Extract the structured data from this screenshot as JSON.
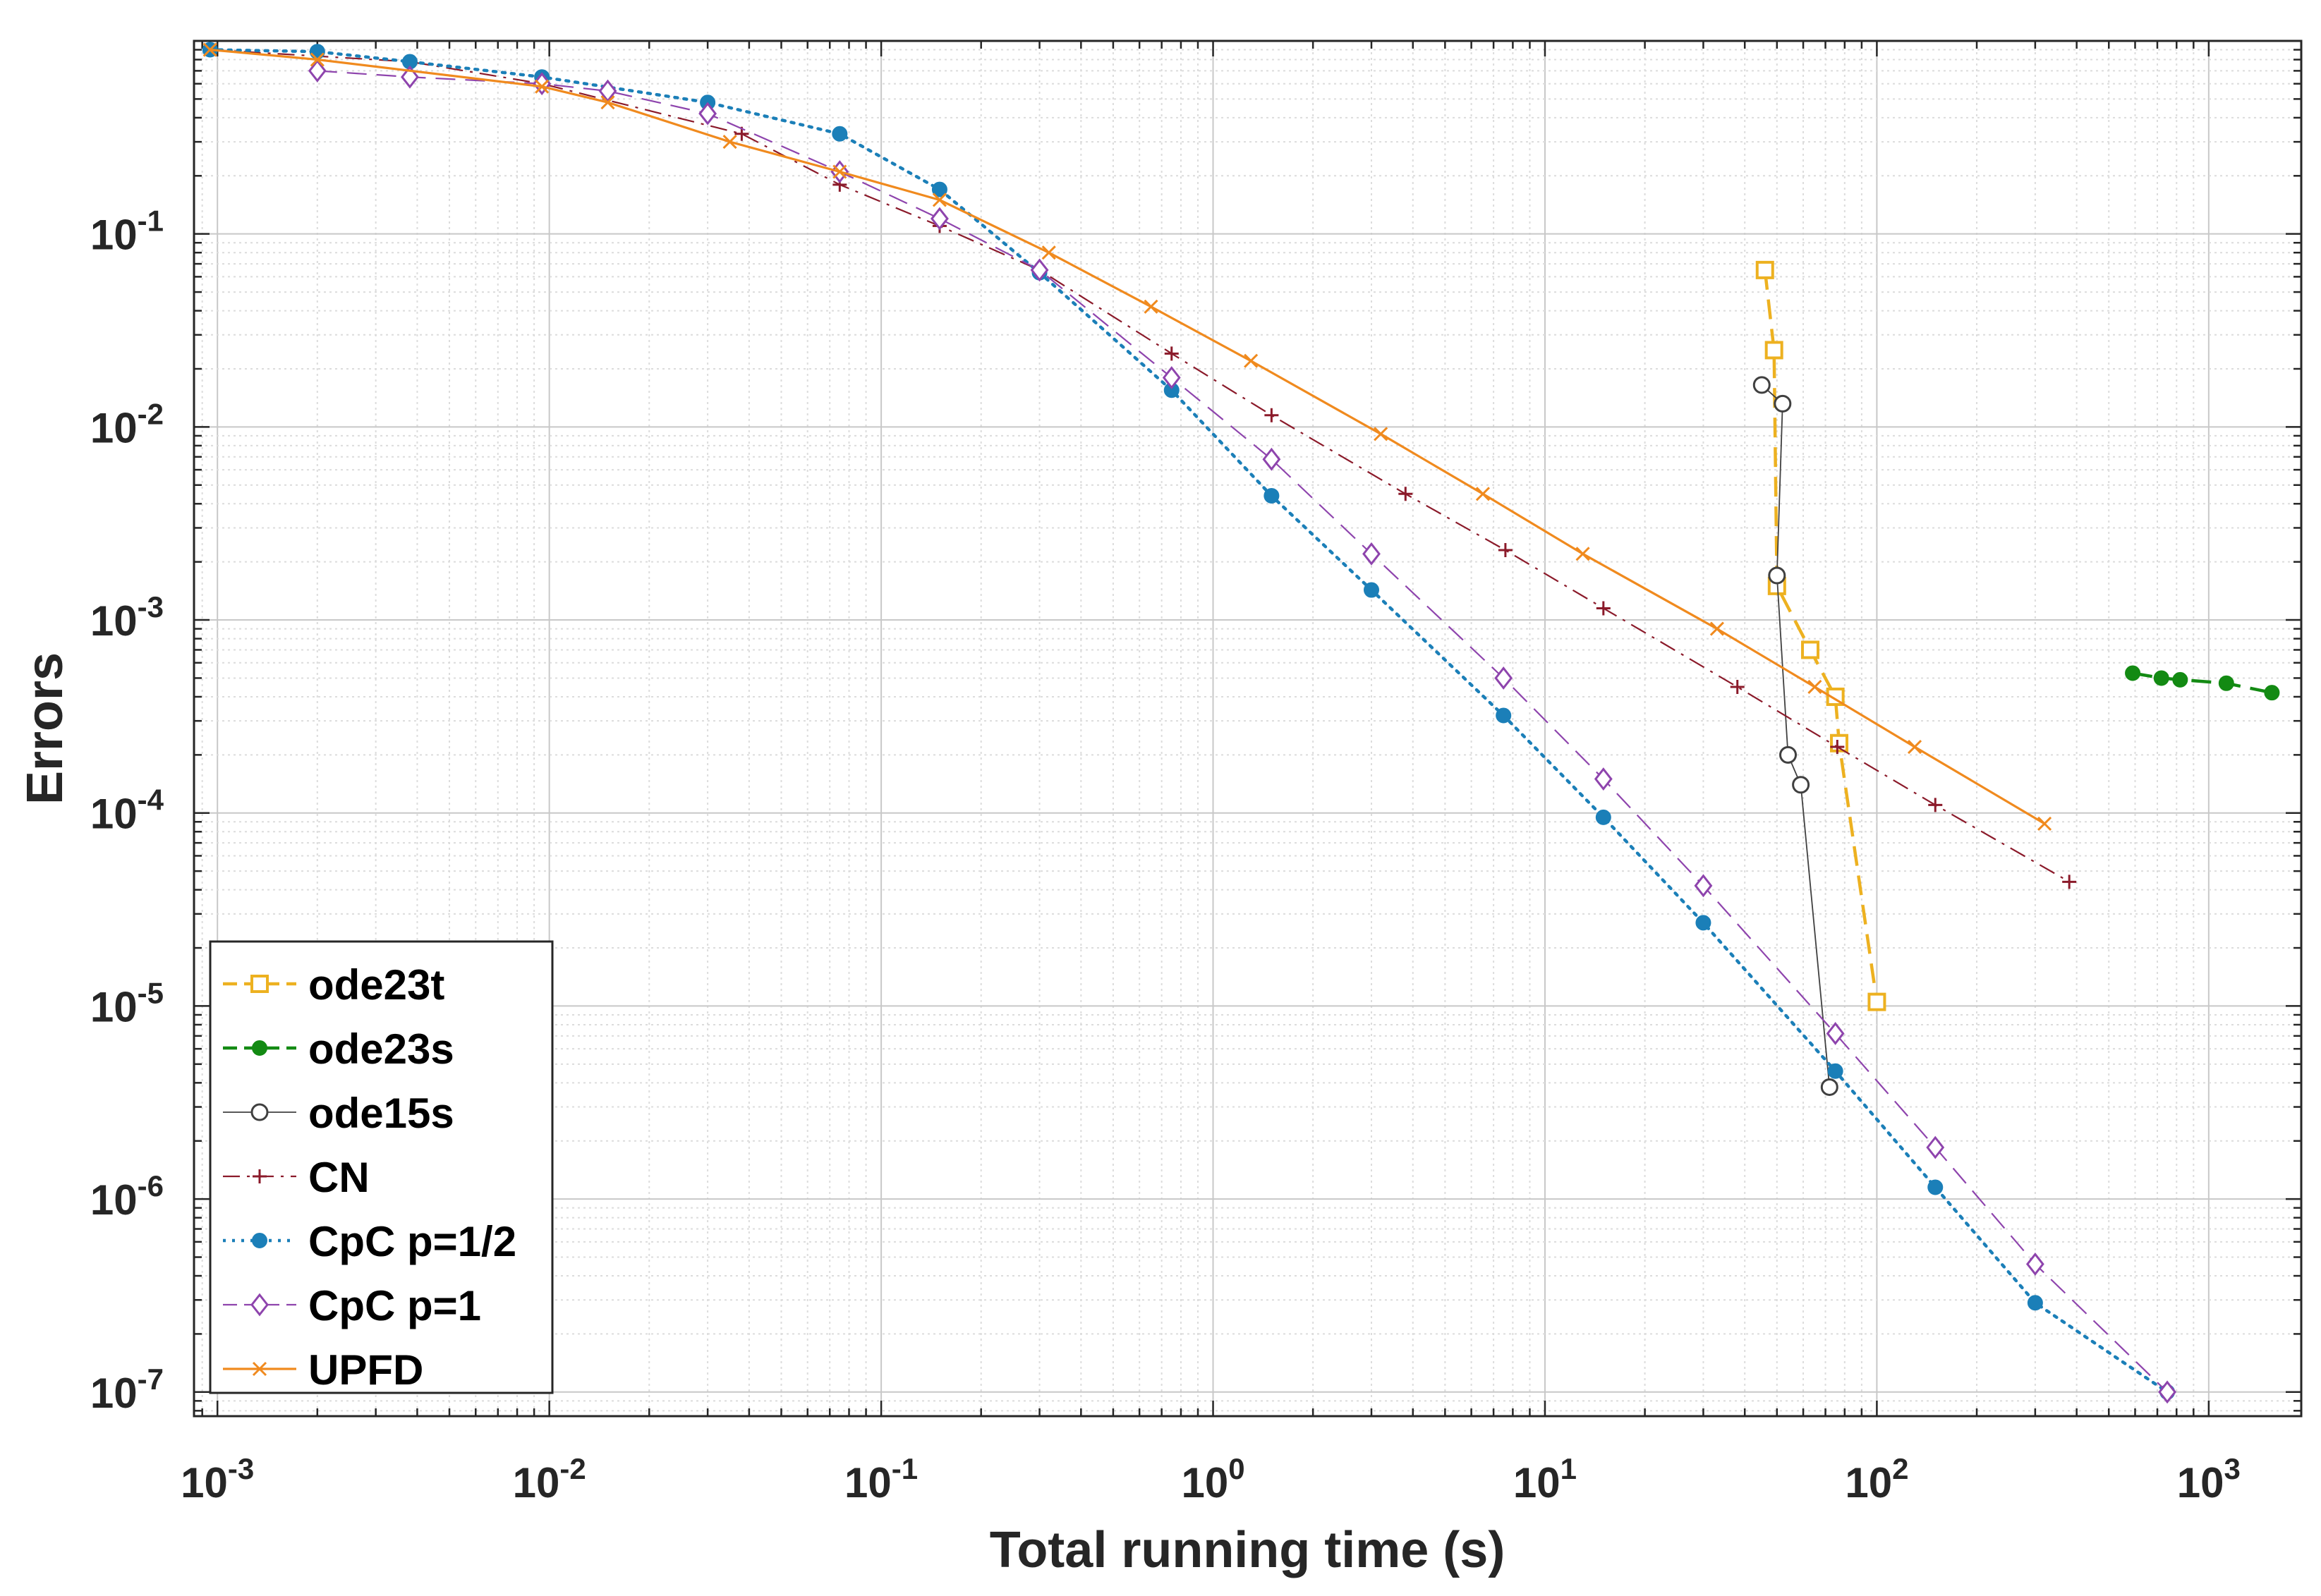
{
  "chart_data": {
    "type": "line",
    "title": "",
    "xlabel": "Total running time (s)",
    "ylabel": "Errors",
    "xscale": "log",
    "yscale": "log",
    "xlim": [
      0.00085,
      1900
    ],
    "ylim": [
      7.5e-08,
      1.0
    ],
    "grid": true,
    "minor_grid": true,
    "legend_position": "bottom-left",
    "x_ticks": [
      {
        "value": 0.001,
        "base": "10",
        "exp": "-3"
      },
      {
        "value": 0.01,
        "base": "10",
        "exp": "-2"
      },
      {
        "value": 0.1,
        "base": "10",
        "exp": "-1"
      },
      {
        "value": 1,
        "base": "10",
        "exp": "0"
      },
      {
        "value": 10,
        "base": "10",
        "exp": "1"
      },
      {
        "value": 100,
        "base": "10",
        "exp": "2"
      },
      {
        "value": 1000,
        "base": "10",
        "exp": "3"
      }
    ],
    "y_ticks": [
      {
        "value": 1e-07,
        "base": "10",
        "exp": "-7"
      },
      {
        "value": 1e-06,
        "base": "10",
        "exp": "-6"
      },
      {
        "value": 1e-05,
        "base": "10",
        "exp": "-5"
      },
      {
        "value": 0.0001,
        "base": "10",
        "exp": "-4"
      },
      {
        "value": 0.001,
        "base": "10",
        "exp": "-3"
      },
      {
        "value": 0.01,
        "base": "10",
        "exp": "-2"
      },
      {
        "value": 0.1,
        "base": "10",
        "exp": "-1"
      }
    ],
    "series": [
      {
        "name": "ode23t",
        "color": "#EDB120",
        "dash": "dash",
        "marker": "square",
        "width": 4.5,
        "x": [
          46,
          49,
          50,
          63,
          75,
          77,
          100
        ],
        "y": [
          0.065,
          0.025,
          0.0015,
          0.0007,
          0.0004,
          0.00023,
          1.05e-05
        ]
      },
      {
        "name": "ode23s",
        "color": "#138A13",
        "dash": "dash",
        "marker": "dot",
        "width": 4.5,
        "x": [
          590,
          720,
          820,
          1130,
          1550
        ],
        "y": [
          0.00053,
          0.0005,
          0.00049,
          0.00047,
          0.00042
        ]
      },
      {
        "name": "ode15s",
        "color": "#404040",
        "dash": "solid",
        "marker": "circle",
        "width": 1.8,
        "x": [
          45,
          52,
          50,
          54,
          59,
          72
        ],
        "y": [
          0.0165,
          0.0132,
          0.0017,
          0.0002,
          0.00014,
          3.8e-06
        ]
      },
      {
        "name": "CN",
        "color": "#8B1A2A",
        "dash": "dashdot",
        "marker": "plus",
        "width": 2.2,
        "x": [
          0.00095,
          0.0038,
          0.0095,
          0.038,
          0.075,
          0.15,
          0.3,
          0.75,
          1.5,
          3.8,
          7.6,
          15,
          38,
          76,
          150,
          380
        ],
        "y": [
          0.9,
          0.78,
          0.6,
          0.33,
          0.18,
          0.11,
          0.065,
          0.024,
          0.0115,
          0.0045,
          0.0023,
          0.00115,
          0.00045,
          0.00022,
          0.00011,
          4.4e-05
        ]
      },
      {
        "name": "CpC p=1/2",
        "color": "#1B7FB8",
        "dash": "dot",
        "marker": "dot",
        "width": 4.5,
        "x": [
          0.00095,
          0.002,
          0.0038,
          0.0095,
          0.03,
          0.075,
          0.15,
          0.3,
          0.75,
          1.5,
          3,
          7.5,
          15,
          30,
          75,
          150,
          300,
          750
        ],
        "y": [
          0.9,
          0.88,
          0.78,
          0.65,
          0.48,
          0.33,
          0.17,
          0.063,
          0.0155,
          0.0044,
          0.00143,
          0.00032,
          9.5e-05,
          2.7e-05,
          4.6e-06,
          1.15e-06,
          2.9e-07,
          1e-07
        ]
      },
      {
        "name": "CpC p=1",
        "color": "#8E44AD",
        "dash": "dash",
        "marker": "diamond",
        "width": 2.2,
        "x": [
          0.002,
          0.0038,
          0.0095,
          0.015,
          0.03,
          0.075,
          0.15,
          0.3,
          0.75,
          1.5,
          3,
          7.5,
          15,
          30,
          75,
          150,
          300,
          750
        ],
        "y": [
          0.7,
          0.65,
          0.6,
          0.55,
          0.42,
          0.21,
          0.12,
          0.065,
          0.018,
          0.0068,
          0.0022,
          0.0005,
          0.00015,
          4.2e-05,
          7.2e-06,
          1.85e-06,
          4.6e-07,
          1e-07
        ]
      },
      {
        "name": "UPFD",
        "color": "#F08A1E",
        "dash": "solid",
        "marker": "x",
        "width": 3.2,
        "x": [
          0.00095,
          0.002,
          0.0095,
          0.015,
          0.035,
          0.075,
          0.15,
          0.32,
          0.65,
          1.3,
          3.2,
          6.5,
          13,
          33,
          65,
          130,
          320
        ],
        "y": [
          0.9,
          0.8,
          0.58,
          0.48,
          0.3,
          0.21,
          0.15,
          0.08,
          0.042,
          0.022,
          0.0092,
          0.0045,
          0.0022,
          0.0009,
          0.00045,
          0.00022,
          8.8e-05
        ]
      }
    ]
  }
}
